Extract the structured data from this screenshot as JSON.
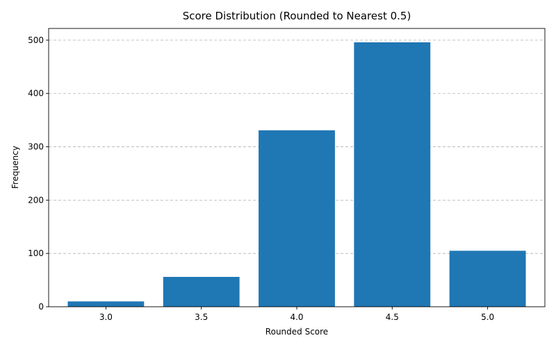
{
  "chart_data": {
    "type": "bar",
    "title": "Score Distribution (Rounded to Nearest 0.5)",
    "xlabel": "Rounded Score",
    "ylabel": "Frequency",
    "categories": [
      "3.0",
      "3.5",
      "4.0",
      "4.5",
      "5.0"
    ],
    "values": [
      10,
      56,
      331,
      496,
      105
    ],
    "ylim": [
      0,
      522
    ],
    "yticks": [
      0,
      100,
      200,
      300,
      400,
      500
    ],
    "grid": "y-dashed",
    "bar_color": "#1f77b4"
  }
}
